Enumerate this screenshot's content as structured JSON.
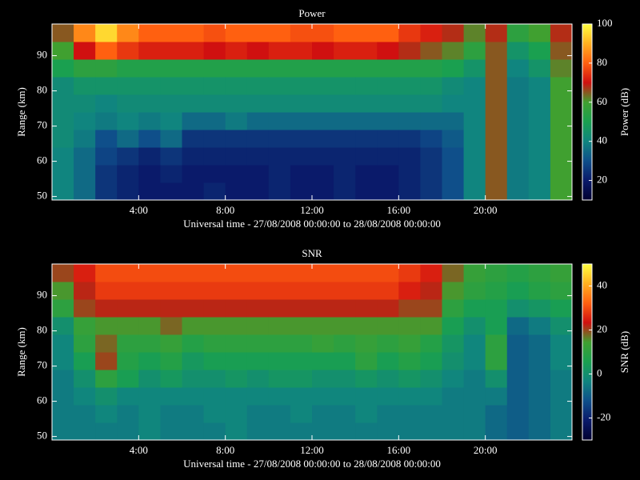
{
  "chart_data": [
    {
      "type": "heatmap",
      "title": "Power",
      "xlabel": "Universal time - 27/08/2008 00:00:00 to 28/08/2008 00:00:00",
      "ylabel": "Range (km)",
      "colorbar_label": "Power (dB)",
      "xlim": [
        0,
        24
      ],
      "xticks": [
        {
          "value": 4,
          "label": "4:00"
        },
        {
          "value": 8,
          "label": "8:00"
        },
        {
          "value": 12,
          "label": "12:00"
        },
        {
          "value": 16,
          "label": "16:00"
        },
        {
          "value": 20,
          "label": "20:00"
        }
      ],
      "ylim": [
        49,
        99
      ],
      "yticks": [
        50,
        60,
        70,
        80,
        90
      ],
      "zlim": [
        10,
        100
      ],
      "zticks": [
        20,
        40,
        60,
        80,
        100
      ],
      "colorscale": [
        "#000030",
        "#0a1a6a",
        "#0f4f8a",
        "#10857f",
        "#1aa050",
        "#40a030",
        "#d01010",
        "#ff6010",
        "#ffb020",
        "#ffff40"
      ],
      "x": [
        0.5,
        1.5,
        2.5,
        3.5,
        4.5,
        5.5,
        6.5,
        7.5,
        8.5,
        9.5,
        10.5,
        11.5,
        12.5,
        13.5,
        14.5,
        15.5,
        16.5,
        17.5,
        18.5,
        19.5,
        20.5,
        21.5,
        22.5,
        23.5
      ],
      "y": [
        51.5,
        56.5,
        61.5,
        66.5,
        71.5,
        76.5,
        81.5,
        86.5,
        91.5,
        96.5
      ],
      "z": [
        [
          40,
          35,
          25,
          22,
          20,
          20,
          20,
          22,
          20,
          20,
          22,
          20,
          20,
          22,
          20,
          20,
          22,
          25,
          30,
          40,
          65,
          38,
          40,
          60
        ],
        [
          40,
          35,
          25,
          22,
          20,
          22,
          20,
          20,
          20,
          20,
          22,
          20,
          20,
          22,
          20,
          20,
          22,
          25,
          30,
          40,
          65,
          38,
          40,
          60
        ],
        [
          40,
          35,
          28,
          25,
          22,
          25,
          22,
          22,
          22,
          22,
          22,
          22,
          22,
          22,
          22,
          22,
          22,
          25,
          30,
          40,
          65,
          38,
          40,
          60
        ],
        [
          42,
          38,
          30,
          35,
          30,
          35,
          25,
          25,
          25,
          25,
          25,
          25,
          25,
          25,
          25,
          25,
          25,
          28,
          32,
          40,
          65,
          38,
          40,
          60
        ],
        [
          42,
          40,
          38,
          40,
          38,
          40,
          35,
          35,
          38,
          35,
          35,
          35,
          35,
          35,
          35,
          35,
          35,
          35,
          35,
          40,
          65,
          38,
          40,
          60
        ],
        [
          42,
          42,
          40,
          42,
          42,
          42,
          42,
          42,
          42,
          42,
          42,
          42,
          42,
          42,
          42,
          42,
          42,
          42,
          40,
          40,
          65,
          38,
          40,
          60
        ],
        [
          42,
          45,
          45,
          45,
          45,
          45,
          45,
          45,
          45,
          45,
          45,
          45,
          45,
          45,
          45,
          45,
          45,
          45,
          42,
          40,
          65,
          38,
          40,
          60
        ],
        [
          50,
          55,
          55,
          52,
          52,
          52,
          52,
          52,
          52,
          52,
          52,
          52,
          52,
          52,
          52,
          52,
          52,
          52,
          50,
          45,
          65,
          40,
          45,
          62
        ],
        [
          60,
          70,
          80,
          75,
          72,
          72,
          72,
          70,
          72,
          70,
          72,
          72,
          70,
          72,
          72,
          70,
          68,
          65,
          62,
          55,
          65,
          45,
          50,
          65
        ],
        [
          65,
          85,
          95,
          85,
          80,
          80,
          80,
          78,
          80,
          80,
          80,
          78,
          78,
          80,
          80,
          80,
          75,
          72,
          68,
          62,
          68,
          55,
          60,
          68
        ]
      ]
    },
    {
      "type": "heatmap",
      "title": "SNR",
      "xlabel": "Universal time - 27/08/2008 00:00:00 to 28/08/2008 00:00:00",
      "ylabel": "Range (km)",
      "colorbar_label": "SNR (dB)",
      "xlim": [
        0,
        24
      ],
      "xticks": [
        {
          "value": 4,
          "label": "4:00"
        },
        {
          "value": 8,
          "label": "8:00"
        },
        {
          "value": 12,
          "label": "12:00"
        },
        {
          "value": 16,
          "label": "16:00"
        },
        {
          "value": 20,
          "label": "20:00"
        }
      ],
      "ylim": [
        49,
        99
      ],
      "yticks": [
        50,
        60,
        70,
        80,
        90
      ],
      "zlim": [
        -30,
        50
      ],
      "zticks": [
        -20,
        0,
        20,
        40
      ],
      "colorscale": [
        "#000030",
        "#0a1a6a",
        "#0f4f8a",
        "#10857f",
        "#1aa050",
        "#40a030",
        "#d01010",
        "#ff6010",
        "#ffb020",
        "#ffff40"
      ],
      "x": [
        0.5,
        1.5,
        2.5,
        3.5,
        4.5,
        5.5,
        6.5,
        7.5,
        8.5,
        9.5,
        10.5,
        11.5,
        12.5,
        13.5,
        14.5,
        15.5,
        16.5,
        17.5,
        18.5,
        19.5,
        20.5,
        21.5,
        22.5,
        23.5
      ],
      "y": [
        51.5,
        56.5,
        61.5,
        66.5,
        71.5,
        76.5,
        81.5,
        86.5,
        91.5,
        96.5
      ],
      "z": [
        [
          -5,
          -5,
          -5,
          -5,
          -3,
          -5,
          -5,
          -5,
          -3,
          -5,
          -5,
          -5,
          -5,
          -5,
          -5,
          -5,
          -5,
          -5,
          -5,
          -5,
          -8,
          -10,
          -8,
          -5
        ],
        [
          -5,
          -5,
          -3,
          -5,
          -3,
          -5,
          -5,
          -3,
          -3,
          -5,
          -5,
          -3,
          -5,
          -5,
          -3,
          -5,
          -5,
          -5,
          -5,
          -5,
          -8,
          -10,
          -8,
          -5
        ],
        [
          -5,
          -3,
          0,
          -3,
          -3,
          -3,
          -3,
          -3,
          -3,
          -3,
          -3,
          -3,
          -3,
          -3,
          -3,
          -3,
          -3,
          -3,
          -5,
          -5,
          -5,
          -10,
          -8,
          -5
        ],
        [
          -5,
          0,
          10,
          5,
          0,
          3,
          0,
          0,
          2,
          0,
          2,
          2,
          0,
          0,
          2,
          0,
          2,
          0,
          -3,
          -5,
          0,
          -10,
          -8,
          -5
        ],
        [
          -3,
          5,
          20,
          8,
          5,
          8,
          3,
          5,
          5,
          5,
          5,
          5,
          5,
          5,
          10,
          5,
          8,
          5,
          0,
          -3,
          10,
          -10,
          -8,
          -3
        ],
        [
          -3,
          10,
          18,
          10,
          10,
          12,
          8,
          10,
          10,
          10,
          10,
          10,
          12,
          10,
          12,
          10,
          12,
          8,
          2,
          -3,
          10,
          -10,
          -8,
          -3
        ],
        [
          0,
          12,
          15,
          15,
          15,
          18,
          15,
          15,
          15,
          15,
          15,
          15,
          15,
          15,
          15,
          15,
          15,
          15,
          5,
          0,
          5,
          -8,
          -5,
          0
        ],
        [
          10,
          20,
          22,
          22,
          22,
          22,
          22,
          22,
          22,
          22,
          22,
          22,
          22,
          22,
          22,
          22,
          20,
          20,
          10,
          5,
          5,
          0,
          2,
          5
        ],
        [
          15,
          22,
          28,
          28,
          28,
          28,
          28,
          28,
          28,
          28,
          28,
          28,
          28,
          28,
          28,
          28,
          25,
          22,
          15,
          10,
          8,
          5,
          8,
          10
        ],
        [
          20,
          25,
          30,
          30,
          30,
          30,
          30,
          30,
          30,
          30,
          30,
          30,
          30,
          30,
          30,
          30,
          28,
          25,
          18,
          12,
          10,
          8,
          10,
          12
        ]
      ]
    }
  ]
}
